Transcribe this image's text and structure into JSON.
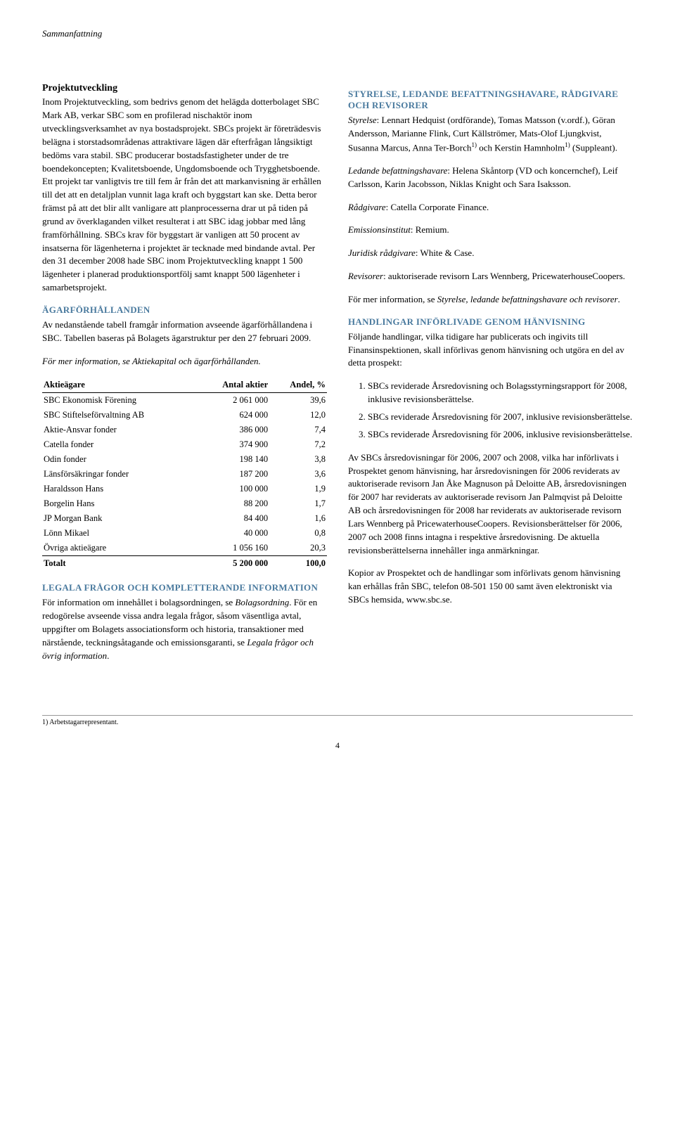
{
  "header": "Sammanfattning",
  "left": {
    "proj_title": "Projektutveckling",
    "proj_body": "Inom Projektutveckling, som bedrivs genom det helägda dotterbolaget SBC Mark AB, verkar SBC som en profilerad nischaktör inom utvecklingsverksamhet av nya bostadsprojekt. SBCs projekt är företrädesvis belägna i storstadsområdenas attraktivare lägen där efterfrågan långsiktigt bedöms vara stabil. SBC producerar bostadsfastigheter under de tre boendekoncepten; Kvalitetsboende, Ungdomsboende och Trygghetsboende. Ett projekt tar vanligtvis tre till fem år från det att markanvisning är erhållen till det att en detaljplan vunnit laga kraft och byggstart kan ske. Detta beror främst på att det blir allt vanligare att planprocesserna drar ut på tiden på grund av överklaganden vilket resulterat i att SBC idag jobbar med lång framförhållning. SBCs krav för byggstart är vanligen att 50 procent av insatserna för lägenheterna i projektet är tecknade med bindande avtal. Per den 31 december 2008 hade SBC inom Projektutveckling knappt 1 500 lägenheter i planerad produktionsportfölj samt knappt 500 lägenheter i samarbetsprojekt.",
    "agar_heading": "ÄGARFÖRHÅLLANDEN",
    "agar_body": "Av nedanstående tabell framgår information avseende ägarförhållandena i SBC. Tabellen baseras på Bolagets ägarstruktur per den 27 februari 2009.",
    "agar_note": "För mer information, se Aktiekapital och ägarförhållanden.",
    "table": {
      "cols": [
        "Aktieägare",
        "Antal aktier",
        "Andel, %"
      ],
      "rows": [
        [
          "SBC Ekonomisk Förening",
          "2 061 000",
          "39,6"
        ],
        [
          "SBC Stiftelseförvaltning AB",
          "624 000",
          "12,0"
        ],
        [
          "Aktie-Ansvar fonder",
          "386 000",
          "7,4"
        ],
        [
          "Catella fonder",
          "374 900",
          "7,2"
        ],
        [
          "Odin fonder",
          "198 140",
          "3,8"
        ],
        [
          "Länsförsäkringar fonder",
          "187 200",
          "3,6"
        ],
        [
          "Haraldsson Hans",
          "100 000",
          "1,9"
        ],
        [
          "Borgelin Hans",
          "88 200",
          "1,7"
        ],
        [
          "JP Morgan Bank",
          "84 400",
          "1,6"
        ],
        [
          "Lönn Mikael",
          "40 000",
          "0,8"
        ],
        [
          "Övriga aktieägare",
          "1 056 160",
          "20,3"
        ]
      ],
      "total": [
        "Totalt",
        "5 200 000",
        "100,0"
      ]
    },
    "legal_heading": "LEGALA FRÅGOR OCH KOMPLETTERANDE INFORMATION",
    "legal_body": "För information om innehållet i bolagsordningen, se Bolagsordning. För en redogörelse avseende vissa andra legala frågor, såsom väsentliga avtal, uppgifter om Bolagets associationsform och historia, transaktioner med närstående, teckningsåtagande och emissionsgaranti, se Legala frågor och övrig information."
  },
  "right": {
    "styrelse_heading": "STYRELSE, LEDANDE BEFATTNINGSHAVARE, RÅDGIVARE OCH REVISORER",
    "styrelse_p1_a": "Styrelse",
    "styrelse_p1_b": ": Lennart Hedquist (ordförande), Tomas Matsson (v.ordf.), Göran Andersson, Marianne Flink, Curt Källströmer, Mats-Olof Ljungkvist, Susanna Marcus, Anna Ter-Borch",
    "styrelse_p1_c": " och Kerstin Hamnholm",
    "styrelse_p1_d": " (Suppleant).",
    "ledande_a": "Ledande befattningshavare",
    "ledande_b": ": Helena Skåntorp (VD och koncernchef), Leif Carlsson, Karin Jacobsson, Niklas Knight och Sara Isaksson.",
    "radgivare_a": "Rådgivare",
    "radgivare_b": ": Catella Corporate Finance.",
    "emiss_a": "Emissionsinstitut",
    "emiss_b": ": Remium.",
    "juridisk_a": "Juridisk rådgivare",
    "juridisk_b": ": White & Case.",
    "revisorer_a": "Revisorer",
    "revisorer_b": ": auktoriserade revisorn Lars Wennberg, PricewaterhouseCoopers.",
    "merinfo_a": "För mer information, se ",
    "merinfo_b": "Styrelse, ledande befattningshavare och revisorer",
    "merinfo_c": ".",
    "handl_heading": "HANDLINGAR INFÖRLIVADE GENOM HÄNVISNING",
    "handl_body": "Följande handlingar, vilka tidigare har publicerats och ingivits till Finansinspektionen, skall införlivas genom hänvisning och utgöra en del av detta prospekt:",
    "list": [
      "SBCs reviderade Årsredovisning och Bolagsstyrningsrapport för 2008, inklusive revisionsberättelse.",
      "SBCs reviderade Årsredovisning för 2007, inklusive revisionsberättelse.",
      "SBCs reviderade Årsredovisning för 2006, inklusive revisionsberättelse."
    ],
    "ars_body": "Av SBCs årsredovisningar för 2006, 2007 och 2008, vilka har införlivats i Prospektet genom hänvisning, har årsredovisningen för 2006 reviderats av auktoriserade revisorn Jan Åke Magnuson på Deloitte AB, årsredovisningen för 2007 har reviderats av auktoriserade revisorn Jan Palmqvist på Deloitte AB och årsredovisningen för 2008 har reviderats av auktoriserade revisorn Lars Wennberg på PricewaterhouseCoopers. Revisionsberättelser för 2006, 2007 och 2008 finns intagna i respektive årsredovisning. De aktuella revisionsberättelserna innehåller inga anmärkningar.",
    "kopior_body": "Kopior av Prospektet och de handlingar som införlivats genom hänvisning kan erhållas från SBC, telefon 08-501 150 00 samt även elektroniskt via SBCs hemsida, www.sbc.se."
  },
  "footnote": "1) Arbetstagarrepresentant.",
  "page_number": "4"
}
